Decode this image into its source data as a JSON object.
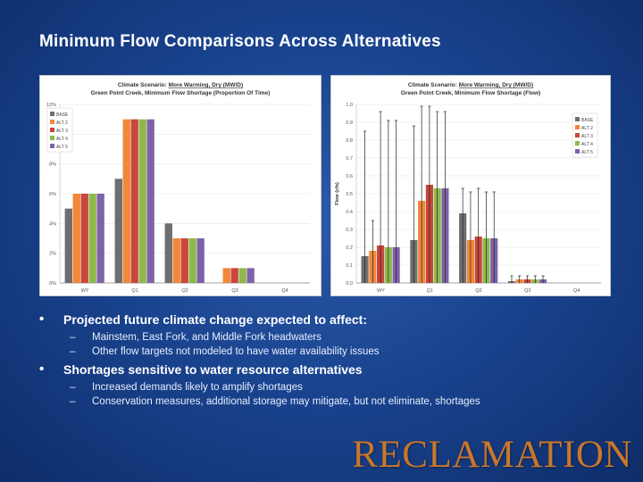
{
  "slide": {
    "title": "Minimum Flow Comparisons Across Alternatives",
    "logo": "RECLAMATION"
  },
  "colors": {
    "BASE": "#6e6e6e",
    "ALT 2": "#f0883a",
    "ALT 3": "#c8463c",
    "ALT 4": "#8fb84b",
    "ALT 5": "#7e62a8"
  },
  "chart_data": [
    {
      "type": "bar",
      "title_prefix": "Climate Scenario:",
      "title_scenario": "More Warming, Dry (MW/D)",
      "subtitle": "Green Point Creek, Minimum Flow Shortage (Proportion Of Time)",
      "categories": [
        "WY",
        "Q1",
        "Q2",
        "Q3",
        "Q4"
      ],
      "ylim": [
        0,
        12
      ],
      "yticks": [
        0,
        2,
        4,
        6,
        8,
        10,
        12
      ],
      "ytick_labels": [
        "0%",
        "2%",
        "4%",
        "6%",
        "8%",
        "10%",
        "12%"
      ],
      "ylabel": "",
      "legend_position": "top-right",
      "series": [
        {
          "name": "BASE",
          "values": [
            5,
            7,
            4,
            0,
            0
          ]
        },
        {
          "name": "ALT 2",
          "values": [
            6,
            11,
            3,
            1,
            0
          ]
        },
        {
          "name": "ALT 3",
          "values": [
            6,
            11,
            3,
            1,
            0
          ]
        },
        {
          "name": "ALT 4",
          "values": [
            6,
            11,
            3,
            1,
            0
          ]
        },
        {
          "name": "ALT 5",
          "values": [
            6,
            11,
            3,
            1,
            0
          ]
        }
      ]
    },
    {
      "type": "bar",
      "title_prefix": "Climate Scenario:",
      "title_scenario": "More Warming, Dry (MW/D)",
      "subtitle": "Green Point Creek, Minimum Flow Shortage (Flow)",
      "categories": [
        "WY",
        "Q1",
        "Q2",
        "Q3",
        "Q4"
      ],
      "ylim": [
        0,
        1.0
      ],
      "yticks": [
        0,
        0.1,
        0.2,
        0.3,
        0.4,
        0.5,
        0.6,
        0.7,
        0.8,
        0.9,
        1.0
      ],
      "ytick_labels": [
        "0.0",
        "0.1",
        "0.2",
        "0.3",
        "0.4",
        "0.5",
        "0.6",
        "0.7",
        "0.8",
        "0.9",
        "1.0"
      ],
      "ylabel": "Flow (cfs)",
      "legend_position": "top-right",
      "series": [
        {
          "name": "BASE",
          "values": [
            0.15,
            0.24,
            0.39,
            0.01,
            0
          ],
          "error_high": [
            0.85,
            0.88,
            0.53,
            0.04,
            0
          ]
        },
        {
          "name": "ALT 2",
          "values": [
            0.18,
            0.46,
            0.24,
            0.02,
            0
          ],
          "error_high": [
            0.35,
            0.99,
            0.51,
            0.04,
            0
          ]
        },
        {
          "name": "ALT 3",
          "values": [
            0.21,
            0.55,
            0.26,
            0.02,
            0
          ],
          "error_high": [
            0.96,
            0.99,
            0.53,
            0.04,
            0
          ]
        },
        {
          "name": "ALT 4",
          "values": [
            0.2,
            0.53,
            0.25,
            0.02,
            0
          ],
          "error_high": [
            0.91,
            0.96,
            0.51,
            0.04,
            0
          ]
        },
        {
          "name": "ALT 5",
          "values": [
            0.2,
            0.53,
            0.25,
            0.02,
            0
          ],
          "error_high": [
            0.91,
            0.96,
            0.51,
            0.04,
            0
          ]
        }
      ]
    }
  ],
  "bullets": [
    {
      "text": "Projected future climate change expected to affect:",
      "subs": [
        "Mainstem, East Fork, and Middle Fork headwaters",
        "Other flow targets not modeled to have water availability issues"
      ]
    },
    {
      "text": "Shortages sensitive to water resource alternatives",
      "subs": [
        "Increased demands likely to amplify shortages",
        "Conservation measures, additional storage may mitigate, but not eliminate, shortages"
      ]
    }
  ],
  "symbols": {
    "bullet": "•",
    "dash": "–"
  }
}
